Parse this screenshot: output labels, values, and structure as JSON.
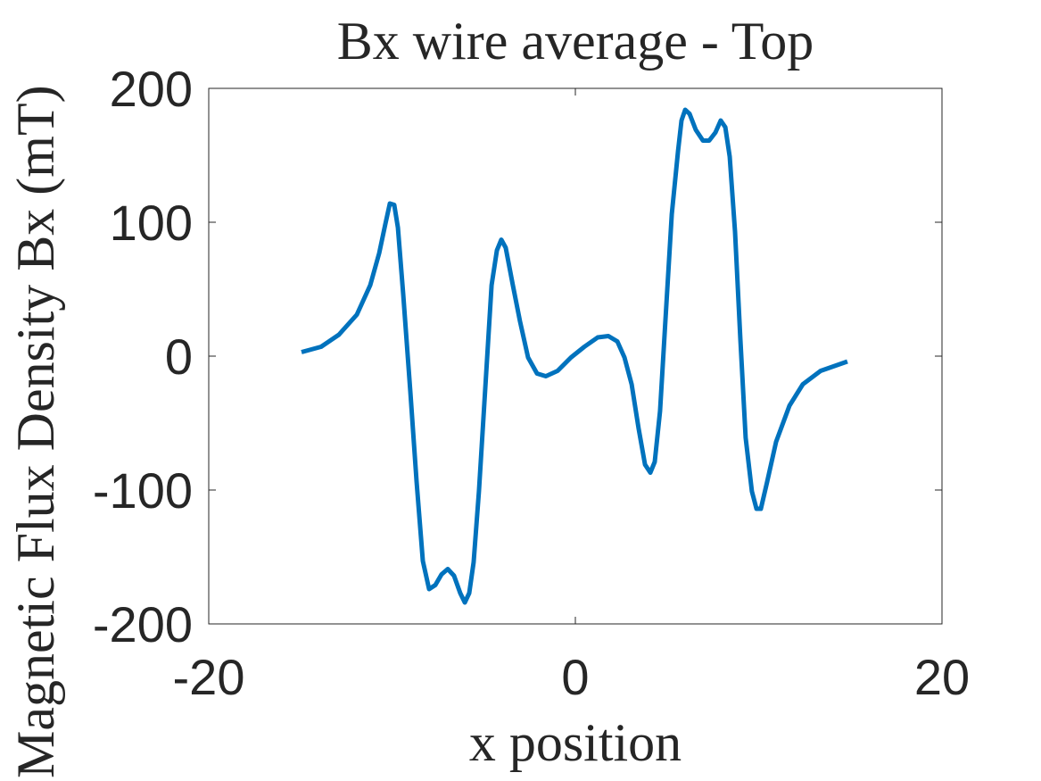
{
  "chart_data": {
    "type": "line",
    "title": "Bx wire average - Top",
    "xlabel": "x position",
    "ylabel": "Magnetic Flux Density Bx (mT)",
    "xlim": [
      -20,
      20
    ],
    "xticks": [
      -20,
      0,
      20
    ],
    "ylim": [
      -200,
      200
    ],
    "yticks": [
      -200,
      -100,
      0,
      100,
      200
    ],
    "series": [
      {
        "color": "#0072bd",
        "x": [
          -14.94,
          -13.87,
          -12.9,
          -11.92,
          -11.19,
          -10.7,
          -10.36,
          -10.12,
          -9.88,
          -9.68,
          -9.39,
          -9.0,
          -8.66,
          -8.32,
          -7.98,
          -7.64,
          -7.3,
          -6.96,
          -6.62,
          -6.28,
          -6.03,
          -5.79,
          -5.55,
          -5.26,
          -4.87,
          -4.57,
          -4.28,
          -4.04,
          -3.8,
          -3.41,
          -3.02,
          -2.58,
          -2.09,
          -1.61,
          -0.97,
          -0.24,
          0.49,
          1.22,
          1.8,
          2.29,
          2.68,
          3.07,
          3.45,
          3.8,
          4.09,
          4.33,
          4.62,
          4.91,
          5.26,
          5.6,
          5.79,
          5.99,
          6.23,
          6.57,
          6.96,
          7.3,
          7.64,
          7.93,
          8.18,
          8.42,
          8.71,
          9.0,
          9.29,
          9.63,
          9.88,
          10.12,
          10.46,
          10.95,
          11.68,
          12.41,
          13.38,
          14.84
        ],
        "values": [
          3,
          7,
          16,
          31,
          53,
          77,
          99,
          114,
          113,
          96,
          46,
          -27,
          -94,
          -153,
          -174,
          -171,
          -163,
          -159,
          -164,
          -177,
          -184,
          -177,
          -154,
          -101,
          -14,
          53,
          79,
          87,
          81,
          53,
          26,
          -1,
          -13,
          -15,
          -11,
          -1,
          7,
          14,
          15,
          11,
          -1,
          -21,
          -54,
          -81,
          -87,
          -79,
          -41,
          26,
          106,
          153,
          176,
          184,
          181,
          169,
          161,
          161,
          167,
          176,
          171,
          149,
          93,
          13,
          -61,
          -101,
          -114,
          -114,
          -94,
          -64,
          -37,
          -21,
          -11,
          -4
        ]
      }
    ]
  }
}
